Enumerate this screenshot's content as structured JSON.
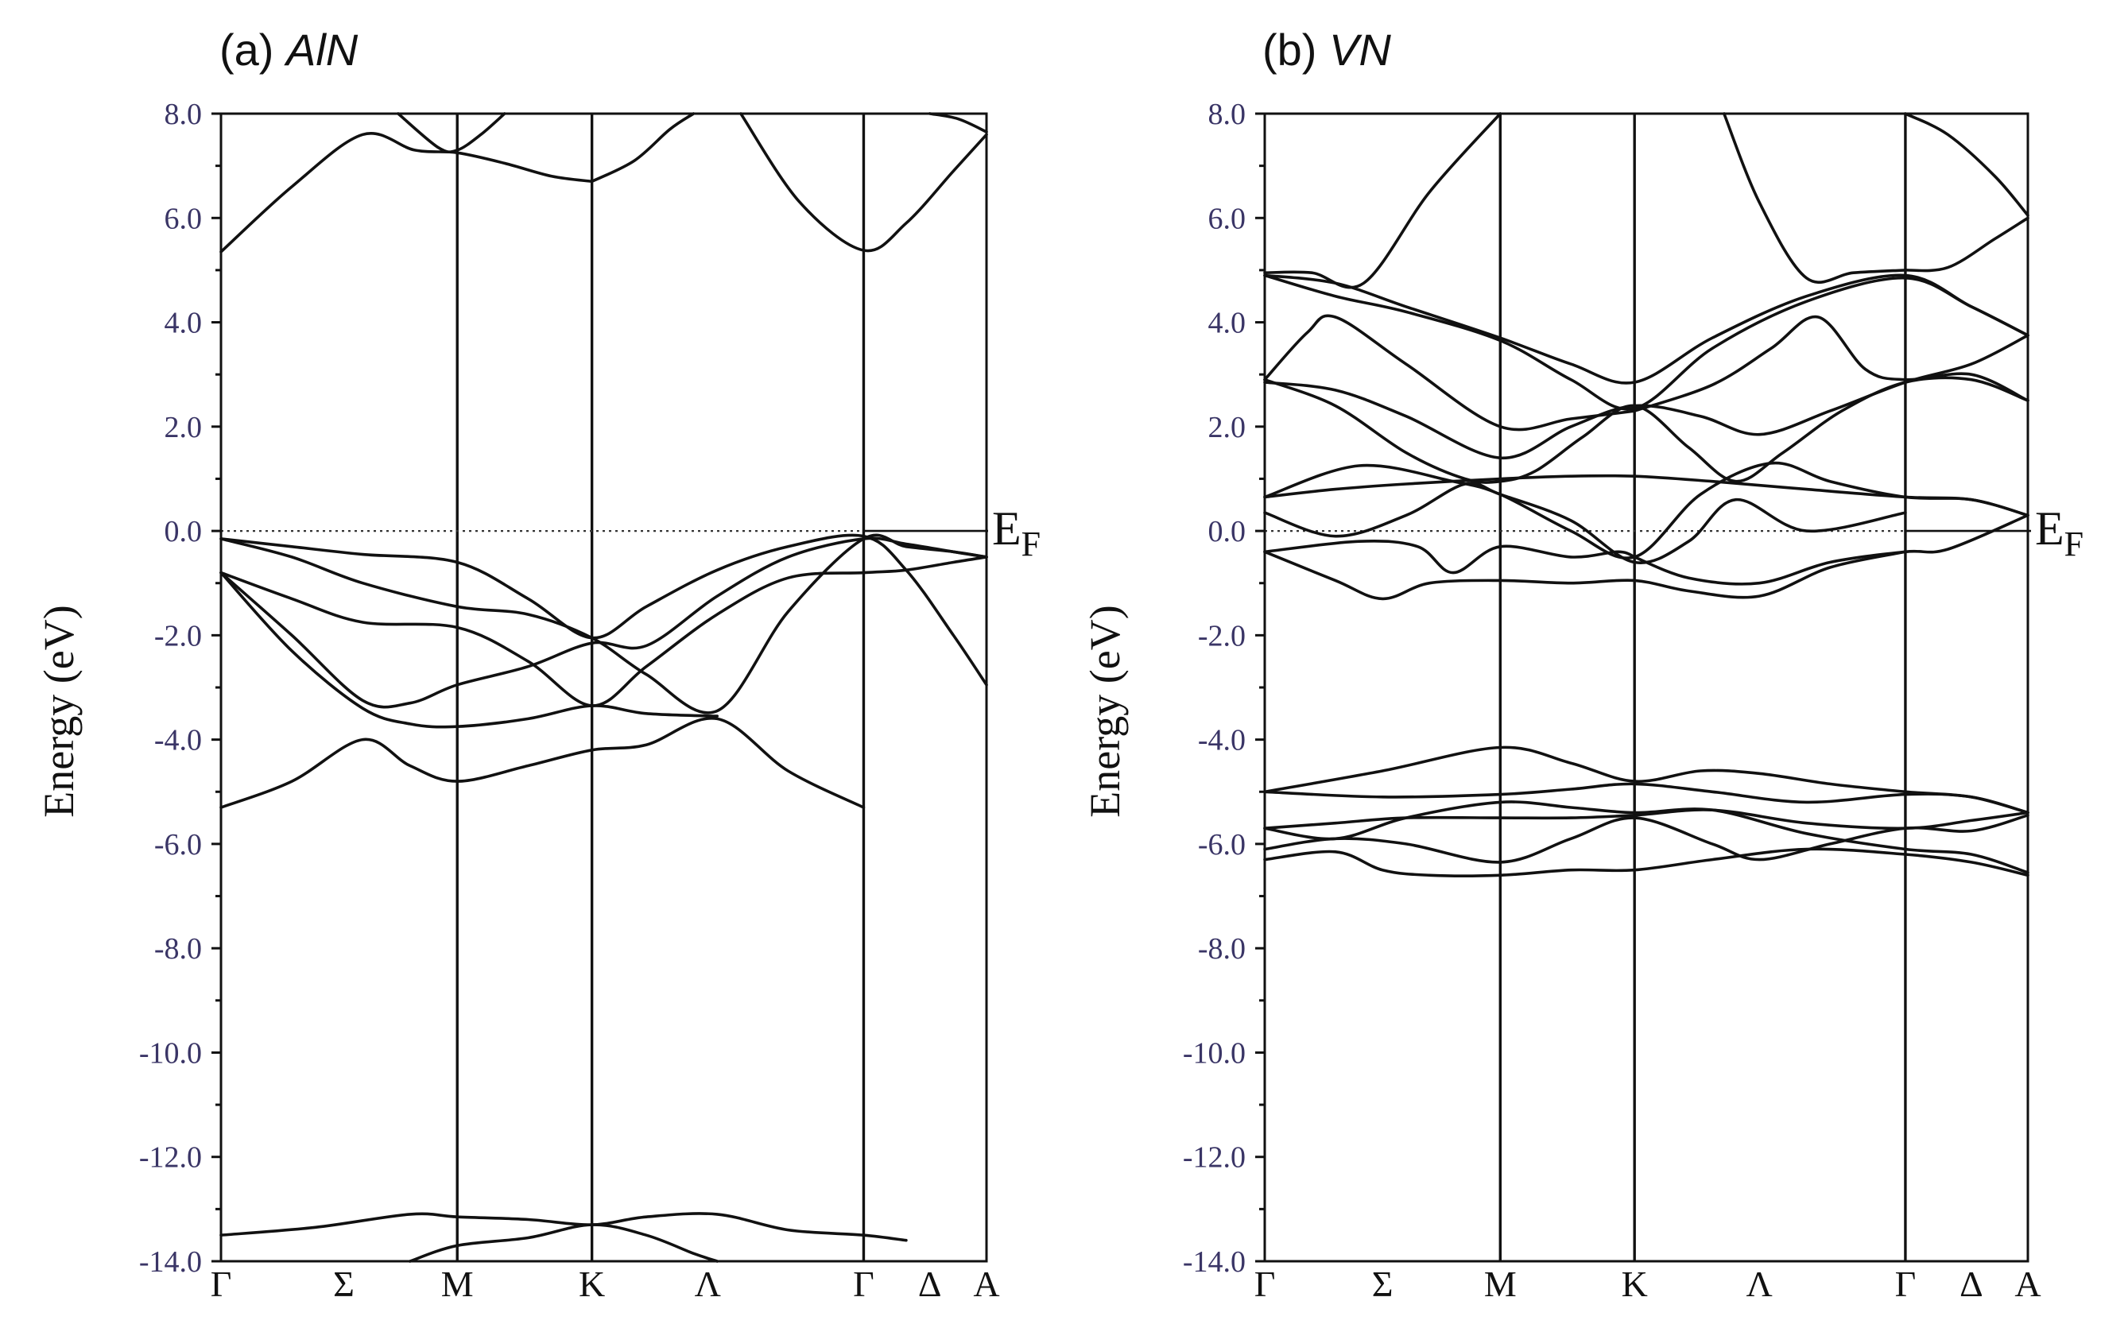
{
  "chart_data": [
    {
      "type": "line",
      "title_prefix": "(a)",
      "title_material": "AlN",
      "ylabel": "Energy (eV)",
      "ylim": [
        -14.0,
        8.0
      ],
      "yticks": [
        -14.0,
        -12.0,
        -10.0,
        -8.0,
        -6.0,
        -4.0,
        -2.0,
        0.0,
        2.0,
        4.0,
        6.0,
        8.0
      ],
      "ytick_labels": [
        "-14.0",
        "-12.0",
        "-10.0",
        "-8.0",
        "-6.0",
        "-4.0",
        "-2.0",
        "0.0",
        "2.0",
        "4.0",
        "6.0",
        "8.0"
      ],
      "kpath": [
        {
          "label": "Γ",
          "k": 0.0,
          "line": false
        },
        {
          "label": "Σ",
          "k": 0.52,
          "line": false
        },
        {
          "label": "M",
          "k": 1.0,
          "line": true
        },
        {
          "label": "K",
          "k": 1.57,
          "line": true
        },
        {
          "label": "Λ",
          "k": 2.06,
          "line": false
        },
        {
          "label": "Γ",
          "k": 2.72,
          "line": true
        },
        {
          "label": "Δ",
          "k": 3.0,
          "line": false
        },
        {
          "label": "A",
          "k": 3.24,
          "line": false
        }
      ],
      "fermi_label": "E",
      "fermi_sub": "F",
      "fermi_style": "dotted-with-solid-extension",
      "series": [
        {
          "name": "band",
          "k": [
            0,
            0.3,
            0.6,
            0.82,
            1.0,
            1.2,
            1.4,
            1.57
          ],
          "E": [
            5.35,
            6.6,
            7.6,
            7.3,
            7.25,
            7.05,
            6.8,
            6.7
          ]
        },
        {
          "name": "band",
          "k": [
            1.57,
            1.75,
            1.9,
            2.0
          ],
          "E": [
            6.7,
            7.1,
            7.7,
            8.0
          ]
        },
        {
          "name": "band",
          "k": [
            2.2,
            2.45,
            2.72,
            2.9,
            3.1,
            3.24
          ],
          "E": [
            8.0,
            6.3,
            5.38,
            5.9,
            6.9,
            7.6
          ]
        },
        {
          "name": "band",
          "k": [
            0.75,
            0.92,
            1.0,
            1.1,
            1.2
          ],
          "E": [
            8.0,
            7.35,
            7.3,
            7.6,
            8.0
          ]
        },
        {
          "name": "band",
          "k": [
            3.0,
            3.12,
            3.24
          ],
          "E": [
            8.0,
            7.9,
            7.65
          ]
        },
        {
          "name": "band",
          "k": [
            0,
            0.3,
            0.6,
            1.0,
            1.3,
            1.57,
            1.8,
            2.1,
            2.4,
            2.72,
            2.9,
            3.1,
            3.24
          ],
          "E": [
            -0.15,
            -0.3,
            -0.45,
            -0.6,
            -1.3,
            -2.05,
            -1.45,
            -0.75,
            -0.3,
            -0.1,
            -0.75,
            -2.0,
            -2.95
          ]
        },
        {
          "name": "band",
          "k": [
            0,
            0.3,
            0.6,
            1.0,
            1.3,
            1.57,
            1.8,
            2.1,
            2.4,
            2.72,
            2.9,
            3.1,
            3.24
          ],
          "E": [
            -0.15,
            -0.5,
            -1.0,
            -1.45,
            -1.6,
            -2.05,
            -2.75,
            -3.45,
            -1.55,
            -0.15,
            -0.3,
            -0.4,
            -0.5
          ]
        },
        {
          "name": "band",
          "k": [
            0,
            0.3,
            0.6,
            1.0,
            1.3,
            1.57,
            1.8,
            2.1,
            2.4,
            2.72,
            2.9,
            3.1,
            3.24
          ],
          "E": [
            -0.8,
            -1.3,
            -1.75,
            -1.85,
            -2.5,
            -3.35,
            -2.6,
            -1.6,
            -0.9,
            -0.8,
            -0.75,
            -0.6,
            -0.5
          ]
        },
        {
          "name": "band",
          "k": [
            0,
            0.3,
            0.6,
            0.8,
            1.0,
            1.3,
            1.57,
            1.8,
            2.1,
            2.4,
            2.72,
            2.9,
            3.1,
            3.24
          ],
          "E": [
            -0.8,
            -2.0,
            -3.25,
            -3.3,
            -2.95,
            -2.6,
            -2.15,
            -2.2,
            -1.25,
            -0.5,
            -0.15,
            -0.25,
            -0.4,
            -0.5
          ]
        },
        {
          "name": "band",
          "k": [
            0,
            0.3,
            0.6,
            0.8,
            1.0,
            1.3,
            1.57,
            1.8,
            2.1
          ],
          "E": [
            -0.8,
            -2.3,
            -3.4,
            -3.7,
            -3.75,
            -3.6,
            -3.35,
            -3.5,
            -3.55
          ]
        },
        {
          "name": "band",
          "k": [
            0,
            0.3,
            0.6,
            0.8,
            1.0,
            1.3,
            1.57,
            1.8,
            2.1,
            2.4,
            2.72
          ],
          "E": [
            -5.3,
            -4.8,
            -4.0,
            -4.5,
            -4.8,
            -4.5,
            -4.2,
            -4.1,
            -3.6,
            -4.6,
            -5.3
          ]
        },
        {
          "name": "band",
          "k": [
            0,
            0.4,
            0.8,
            1.0,
            1.3,
            1.57,
            1.8,
            2.1,
            2.4,
            2.72,
            2.9
          ],
          "E": [
            -13.5,
            -13.35,
            -13.1,
            -13.15,
            -13.2,
            -13.3,
            -13.15,
            -13.1,
            -13.4,
            -13.5,
            -13.6
          ]
        },
        {
          "name": "band",
          "k": [
            0.8,
            1.0,
            1.3,
            1.57,
            1.8,
            2.0,
            2.1
          ],
          "E": [
            -14.0,
            -13.7,
            -13.55,
            -13.3,
            -13.5,
            -13.85,
            -14.0
          ]
        }
      ]
    },
    {
      "type": "line",
      "title_prefix": "(b)",
      "title_material": "VN",
      "ylabel": "Energy (eV)",
      "ylim": [
        -14.0,
        8.0
      ],
      "yticks": [
        -14.0,
        -12.0,
        -10.0,
        -8.0,
        -6.0,
        -4.0,
        -2.0,
        0.0,
        2.0,
        4.0,
        6.0,
        8.0
      ],
      "ytick_labels": [
        "-14.0",
        "-12.0",
        "-10.0",
        "-8.0",
        "-6.0",
        "-4.0",
        "-2.0",
        "0.0",
        "2.0",
        "4.0",
        "6.0",
        "8.0"
      ],
      "kpath": [
        {
          "label": "Γ",
          "k": 0.0,
          "line": false
        },
        {
          "label": "Σ",
          "k": 0.5,
          "line": false
        },
        {
          "label": "M",
          "k": 1.0,
          "line": true
        },
        {
          "label": "K",
          "k": 1.57,
          "line": true
        },
        {
          "label": "Λ",
          "k": 2.1,
          "line": false
        },
        {
          "label": "Γ",
          "k": 2.72,
          "line": true
        },
        {
          "label": "Δ",
          "k": 3.0,
          "line": false
        },
        {
          "label": "A",
          "k": 3.24,
          "line": false
        }
      ],
      "fermi_label": "E",
      "fermi_sub": "F",
      "fermi_style": "dotted-with-solid-extension",
      "series": [
        {
          "name": "band",
          "k": [
            0,
            0.2,
            0.42,
            0.7,
            1.0
          ],
          "E": [
            4.95,
            4.95,
            4.75,
            6.5,
            8.0
          ]
        },
        {
          "name": "band",
          "k": [
            1.95,
            2.1,
            2.3,
            2.5,
            2.72
          ],
          "E": [
            8.0,
            6.3,
            4.85,
            4.95,
            5.0
          ]
        },
        {
          "name": "band",
          "k": [
            2.72,
            2.9,
            3.1,
            3.24
          ],
          "E": [
            5.0,
            5.05,
            5.6,
            6.0
          ]
        },
        {
          "name": "band",
          "k": [
            2.72,
            2.9,
            3.1,
            3.24
          ],
          "E": [
            8.0,
            7.6,
            6.8,
            6.05
          ]
        },
        {
          "name": "band",
          "k": [
            0,
            0.3,
            0.6,
            1.0,
            1.3,
            1.57,
            1.9,
            2.3,
            2.72,
            3.0,
            3.24
          ],
          "E": [
            4.9,
            4.75,
            4.3,
            3.7,
            3.2,
            2.85,
            3.7,
            4.5,
            4.9,
            4.3,
            3.75
          ]
        },
        {
          "name": "band",
          "k": [
            0,
            0.3,
            0.6,
            1.0,
            1.3,
            1.57,
            1.9,
            2.3,
            2.72,
            3.0,
            3.24
          ],
          "E": [
            4.9,
            4.5,
            4.2,
            3.65,
            2.9,
            2.35,
            3.5,
            4.4,
            4.85,
            4.3,
            3.75
          ]
        },
        {
          "name": "band",
          "k": [
            0,
            0.18,
            0.3,
            0.6,
            1.0,
            1.3,
            1.57
          ],
          "E": [
            2.9,
            3.8,
            4.1,
            3.2,
            2.0,
            2.15,
            2.3
          ]
        },
        {
          "name": "band",
          "k": [
            1.57,
            1.9,
            2.15,
            2.35,
            2.55,
            2.72,
            3.0,
            3.24
          ],
          "E": [
            2.3,
            2.8,
            3.5,
            4.1,
            3.1,
            2.9,
            3.0,
            2.5
          ]
        },
        {
          "name": "band",
          "k": [
            0,
            0.3,
            0.6,
            1.0,
            1.3,
            1.57,
            1.85,
            2.1,
            2.4,
            2.72,
            3.0,
            3.24
          ],
          "E": [
            2.85,
            2.7,
            2.2,
            1.4,
            2.0,
            2.4,
            2.2,
            1.85,
            2.3,
            2.85,
            3.2,
            3.75
          ]
        },
        {
          "name": "band",
          "k": [
            0,
            0.3,
            0.6,
            0.85,
            1.0,
            1.15,
            1.35,
            1.57,
            1.8,
            2.0,
            2.2,
            2.45,
            2.72,
            3.0,
            3.24
          ],
          "E": [
            2.9,
            2.4,
            1.5,
            1.0,
            0.95,
            1.15,
            1.8,
            2.4,
            1.6,
            0.95,
            1.5,
            2.3,
            2.85,
            2.9,
            2.5
          ]
        },
        {
          "name": "band",
          "k": [
            0,
            0.3,
            0.6,
            1.0,
            1.3,
            1.57,
            1.9,
            2.3,
            2.72,
            3.0,
            3.24
          ],
          "E": [
            0.65,
            0.8,
            0.9,
            1.0,
            1.05,
            1.05,
            0.95,
            0.8,
            0.65,
            0.6,
            0.3
          ]
        },
        {
          "name": "band",
          "k": [
            0,
            0.4,
            0.8,
            1.0,
            1.3,
            1.57,
            1.85,
            2.15,
            2.4,
            2.72,
            3.0,
            3.24
          ],
          "E": [
            0.65,
            1.25,
            0.95,
            0.7,
            0.0,
            -0.5,
            0.7,
            1.3,
            0.95,
            0.65,
            0.6,
            0.3
          ]
        },
        {
          "name": "band",
          "k": [
            0,
            0.3,
            0.6,
            0.85,
            1.0,
            1.3,
            1.57,
            1.8,
            2.0,
            2.3,
            2.72
          ],
          "E": [
            0.35,
            -0.1,
            0.3,
            0.9,
            0.7,
            0.2,
            -0.6,
            -0.2,
            0.6,
            0.0,
            0.35
          ]
        },
        {
          "name": "band",
          "k": [
            0,
            0.4,
            0.65,
            0.8,
            1.0,
            1.3,
            1.5,
            1.57
          ],
          "E": [
            -0.4,
            -0.2,
            -0.3,
            -0.8,
            -0.3,
            -0.5,
            -0.4,
            -0.5
          ]
        },
        {
          "name": "band",
          "k": [
            1.57,
            1.8,
            2.1,
            2.4,
            2.72,
            2.9,
            3.24
          ],
          "E": [
            -0.5,
            -0.9,
            -1.0,
            -0.6,
            -0.4,
            -0.35,
            0.3
          ]
        },
        {
          "name": "band",
          "k": [
            0,
            0.3,
            0.5,
            0.7,
            1.0,
            1.3,
            1.57,
            1.8,
            2.1,
            2.4,
            2.72
          ],
          "E": [
            -0.4,
            -0.95,
            -1.3,
            -1.0,
            -0.95,
            -1.0,
            -0.95,
            -1.15,
            -1.25,
            -0.7,
            -0.4
          ]
        },
        {
          "name": "band",
          "k": [
            0,
            0.5,
            1.0,
            1.3,
            1.57,
            1.85,
            2.1,
            2.4,
            2.72,
            3.0,
            3.24
          ],
          "E": [
            -5.0,
            -4.6,
            -4.15,
            -4.45,
            -4.8,
            -4.6,
            -4.65,
            -4.85,
            -5.0,
            -5.1,
            -5.4
          ]
        },
        {
          "name": "band",
          "k": [
            0,
            0.5,
            1.0,
            1.3,
            1.57,
            1.9,
            2.3,
            2.72,
            3.0,
            3.24
          ],
          "E": [
            -5.0,
            -5.1,
            -5.05,
            -4.95,
            -4.85,
            -5.0,
            -5.2,
            -5.05,
            -5.1,
            -5.4
          ]
        },
        {
          "name": "band",
          "k": [
            0,
            0.3,
            0.6,
            1.0,
            1.3,
            1.57,
            1.9,
            2.3,
            2.72,
            3.0,
            3.24
          ],
          "E": [
            -5.7,
            -5.6,
            -5.5,
            -5.5,
            -5.5,
            -5.45,
            -5.35,
            -5.6,
            -5.7,
            -5.55,
            -5.4
          ]
        },
        {
          "name": "band",
          "k": [
            0,
            0.3,
            0.6,
            1.0,
            1.3,
            1.57,
            1.9,
            2.3,
            2.72,
            3.0,
            3.24
          ],
          "E": [
            -5.7,
            -5.9,
            -5.5,
            -5.2,
            -5.3,
            -5.4,
            -5.35,
            -5.8,
            -6.1,
            -6.2,
            -6.55
          ]
        },
        {
          "name": "band",
          "k": [
            0,
            0.3,
            0.6,
            1.0,
            1.3,
            1.57,
            1.9,
            2.1,
            2.4,
            2.72,
            3.0,
            3.24
          ],
          "E": [
            -6.1,
            -5.9,
            -6.0,
            -6.35,
            -5.9,
            -5.5,
            -6.0,
            -6.3,
            -6.0,
            -5.7,
            -5.75,
            -5.45
          ]
        },
        {
          "name": "band",
          "k": [
            0,
            0.3,
            0.5,
            0.7,
            1.0,
            1.3,
            1.57,
            1.9,
            2.3,
            2.72,
            3.0,
            3.24
          ],
          "E": [
            -6.3,
            -6.15,
            -6.5,
            -6.6,
            -6.6,
            -6.5,
            -6.5,
            -6.3,
            -6.1,
            -6.2,
            -6.35,
            -6.6
          ]
        }
      ]
    }
  ]
}
